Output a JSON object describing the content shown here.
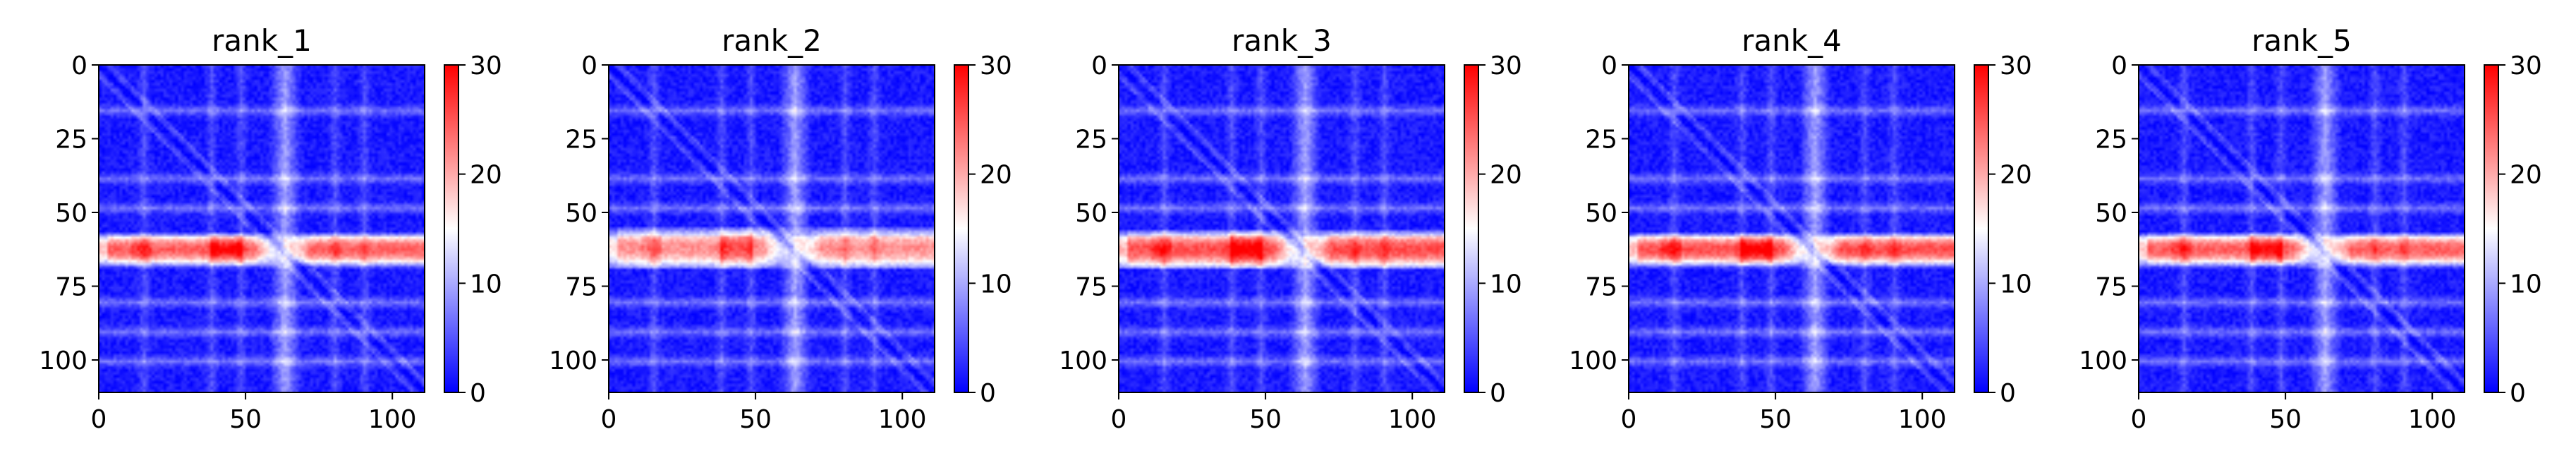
{
  "chart_data": {
    "type": "heatmap",
    "matrix_size": 111,
    "xlim": [
      0,
      111
    ],
    "ylim": [
      111,
      0
    ],
    "xticks": [
      0,
      50,
      100
    ],
    "yticks": [
      0,
      25,
      50,
      75,
      100
    ],
    "colorbar": {
      "range": [
        0,
        30
      ],
      "ticks": [
        0,
        10,
        20,
        30
      ]
    },
    "colormap": [
      "#0000ff",
      "#ffffff",
      "#ff0000"
    ],
    "panels": [
      {
        "title": "rank_1",
        "band_rows": [
          57,
          67
        ],
        "band_gap": [
          52,
          72
        ],
        "band_strength": 1.0
      },
      {
        "title": "rank_2",
        "band_rows": [
          55,
          68
        ],
        "band_gap": [
          52,
          72
        ],
        "band_strength": 0.85
      },
      {
        "title": "rank_3",
        "band_rows": [
          56,
          68
        ],
        "band_gap": [
          52,
          72
        ],
        "band_strength": 1.05
      },
      {
        "title": "rank_4",
        "band_rows": [
          57,
          67
        ],
        "band_gap": [
          52,
          72
        ],
        "band_strength": 1.05
      },
      {
        "title": "rank_5",
        "band_rows": [
          57,
          67
        ],
        "band_gap": [
          52,
          72
        ],
        "band_strength": 1.0
      }
    ]
  }
}
